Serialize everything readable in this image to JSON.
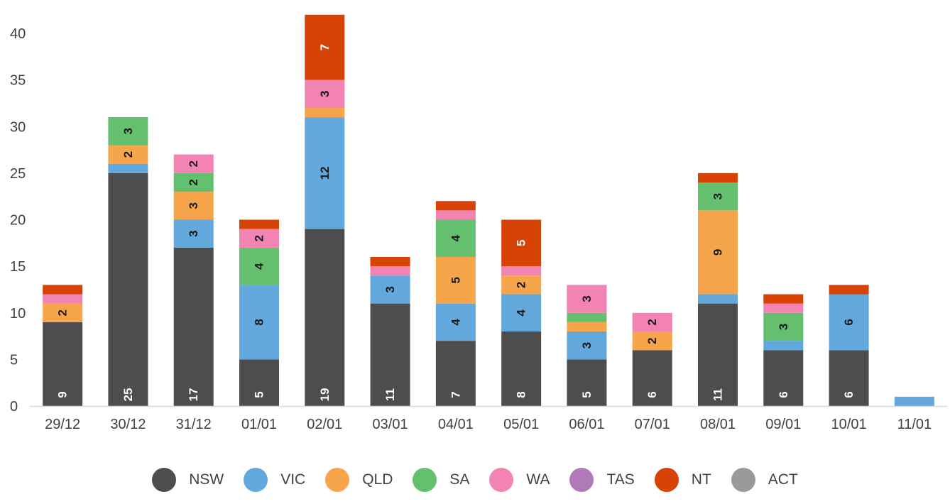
{
  "chart_data": {
    "type": "bar",
    "stacked": true,
    "title": "",
    "xlabel": "",
    "ylabel": "",
    "ylim": [
      0,
      40
    ],
    "yticks": [
      0,
      5,
      10,
      15,
      20,
      25,
      30,
      35,
      40
    ],
    "grid": false,
    "legend_position": "bottom",
    "categories": [
      "29/12",
      "30/12",
      "31/12",
      "01/01",
      "02/01",
      "03/01",
      "04/01",
      "05/01",
      "06/01",
      "07/01",
      "08/01",
      "09/01",
      "10/01",
      "11/01"
    ],
    "series": [
      {
        "name": "NSW",
        "color": "#4d4d4d",
        "label_color": "#ffffff",
        "values": [
          9,
          25,
          17,
          5,
          19,
          11,
          7,
          8,
          5,
          6,
          11,
          6,
          6,
          0
        ],
        "labels": [
          "9",
          "25",
          "17",
          "5",
          "19",
          "11",
          "7",
          "8",
          "5",
          "6",
          "11",
          "6",
          "6",
          ""
        ]
      },
      {
        "name": "VIC",
        "color": "#62a8dc",
        "label_color": "#1a1a1a",
        "values": [
          0,
          1,
          3,
          8,
          12,
          3,
          4,
          4,
          3,
          0,
          1,
          1,
          6,
          1
        ],
        "labels": [
          "",
          "",
          "3",
          "8",
          "12",
          "3",
          "4",
          "4",
          "3",
          "",
          "",
          "",
          "6",
          ""
        ]
      },
      {
        "name": "QLD",
        "color": "#f6a54a",
        "label_color": "#1a1a1a",
        "values": [
          2,
          2,
          3,
          0,
          1,
          0,
          5,
          2,
          1,
          2,
          9,
          0,
          0,
          0
        ],
        "labels": [
          "2",
          "2",
          "3",
          "",
          "",
          "",
          "5",
          "2",
          "",
          "2",
          "9",
          "",
          "",
          ""
        ]
      },
      {
        "name": "SA",
        "color": "#64bf6e",
        "label_color": "#1a1a1a",
        "values": [
          0,
          3,
          2,
          4,
          0,
          0,
          4,
          0,
          1,
          0,
          3,
          3,
          0,
          0
        ],
        "labels": [
          "",
          "3",
          "2",
          "4",
          "",
          "",
          "4",
          "",
          "",
          "",
          "3",
          "3",
          "",
          ""
        ]
      },
      {
        "name": "WA",
        "color": "#f283b2",
        "label_color": "#1a1a1a",
        "values": [
          1,
          0,
          2,
          2,
          3,
          1,
          1,
          1,
          3,
          2,
          0,
          1,
          0,
          0
        ],
        "labels": [
          "",
          "",
          "2",
          "2",
          "3",
          "",
          "",
          "",
          "3",
          "2",
          "",
          "",
          "",
          ""
        ]
      },
      {
        "name": "TAS",
        "color": "#b07ab8",
        "label_color": "#1a1a1a",
        "values": [
          0,
          0,
          0,
          0,
          0,
          0,
          0,
          0,
          0,
          0,
          0,
          0,
          0,
          0
        ],
        "labels": [
          "",
          "",
          "",
          "",
          "",
          "",
          "",
          "",
          "",
          "",
          "",
          "",
          "",
          ""
        ]
      },
      {
        "name": "NT",
        "color": "#d64305",
        "label_color": "#ffffff",
        "values": [
          1,
          0,
          0,
          1,
          7,
          1,
          1,
          5,
          0,
          0,
          1,
          1,
          1,
          0
        ],
        "labels": [
          "",
          "",
          "",
          "",
          "7",
          "",
          "",
          "5",
          "",
          "",
          "",
          "",
          "",
          ""
        ]
      },
      {
        "name": "ACT",
        "color": "#999999",
        "label_color": "#1a1a1a",
        "values": [
          0,
          0,
          0,
          0,
          0,
          0,
          0,
          0,
          0,
          0,
          0,
          0,
          0,
          0
        ],
        "labels": [
          "",
          "",
          "",
          "",
          "",
          "",
          "",
          "",
          "",
          "",
          "",
          "",
          "",
          ""
        ]
      }
    ]
  },
  "colors": {
    "axis": "#d9d9d9",
    "tick_text": "#404040"
  }
}
